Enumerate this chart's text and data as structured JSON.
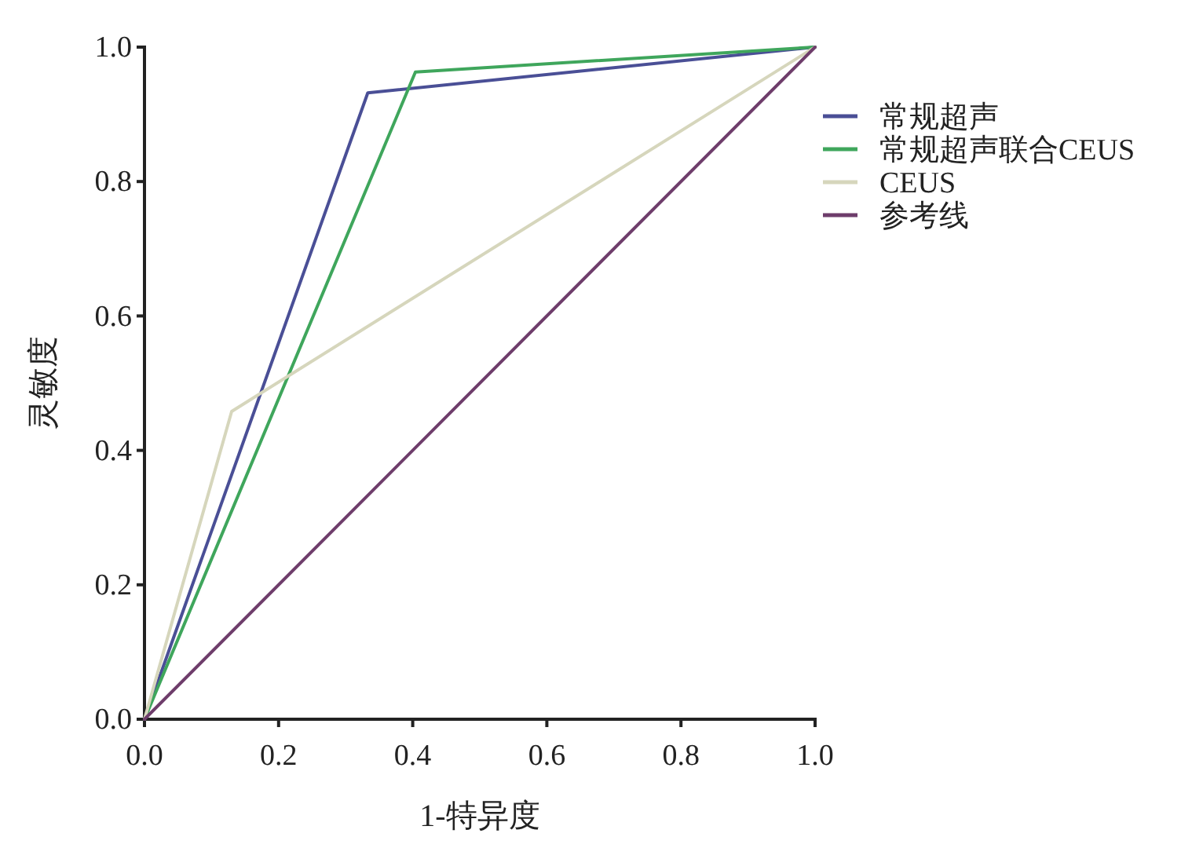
{
  "chart_data": {
    "type": "line",
    "xlabel": "1-特异度",
    "ylabel": "灵敏度",
    "xlim": [
      0,
      1
    ],
    "ylim": [
      0,
      1
    ],
    "xticks": [
      {
        "value": 0,
        "label": "0.0"
      },
      {
        "value": 0.2,
        "label": "0.2"
      },
      {
        "value": 0.4,
        "label": "0.4"
      },
      {
        "value": 0.6,
        "label": "0.6"
      },
      {
        "value": 0.8,
        "label": "0.8"
      },
      {
        "value": 1,
        "label": "1.0"
      }
    ],
    "yticks": [
      {
        "value": 0,
        "label": "0.0"
      },
      {
        "value": 0.2,
        "label": "0.2"
      },
      {
        "value": 0.4,
        "label": "0.4"
      },
      {
        "value": 0.6,
        "label": "0.6"
      },
      {
        "value": 0.8,
        "label": "0.8"
      },
      {
        "value": 1,
        "label": "1.0"
      }
    ],
    "legend": "right",
    "grid": false,
    "series": [
      {
        "name": "常规超声",
        "color": "#4a4f96",
        "x": [
          0,
          0.333,
          1
        ],
        "values": [
          0,
          0.932,
          1
        ]
      },
      {
        "name": "常规超声联合CEUS",
        "color": "#3fa65c",
        "x": [
          0,
          0.404,
          1
        ],
        "values": [
          0,
          0.963,
          1
        ]
      },
      {
        "name": "CEUS",
        "color": "#d6d6bc",
        "x": [
          0,
          0.13,
          1
        ],
        "values": [
          0,
          0.458,
          1
        ]
      },
      {
        "name": "参考线",
        "color": "#6e3d6b",
        "x": [
          0,
          1
        ],
        "values": [
          0,
          1
        ]
      }
    ]
  }
}
